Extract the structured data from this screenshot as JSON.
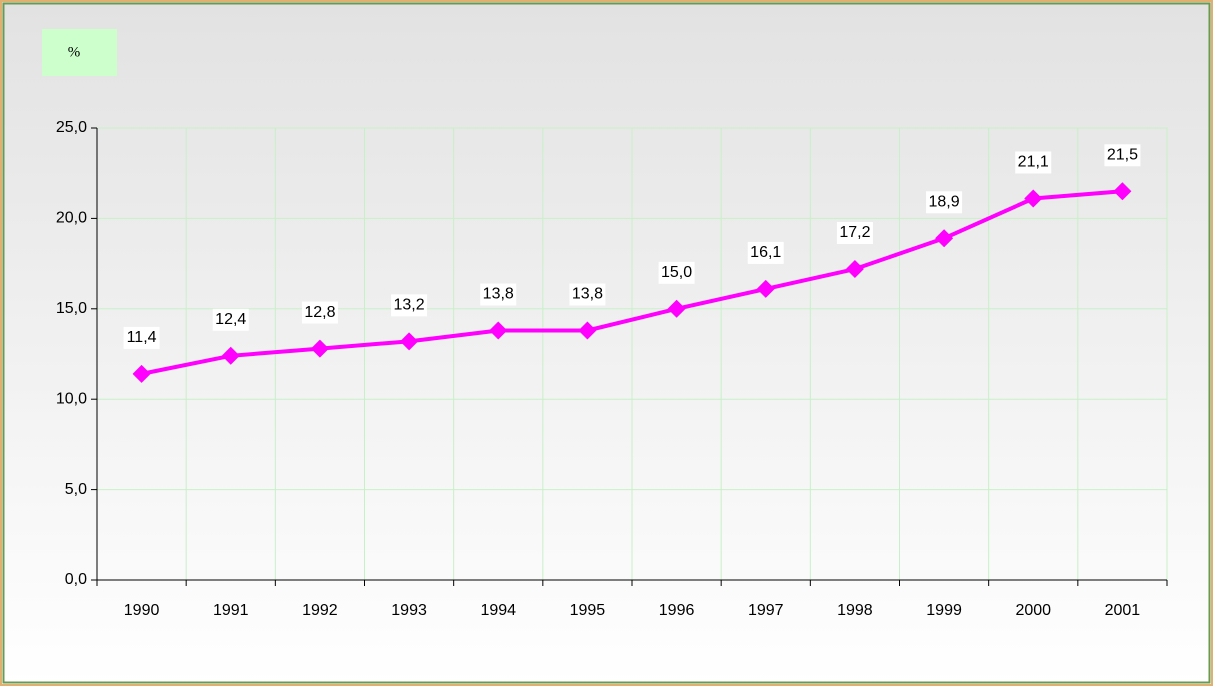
{
  "chart_data": {
    "type": "line",
    "ylabel": "%",
    "categories": [
      "1990",
      "1991",
      "1992",
      "1993",
      "1994",
      "1995",
      "1996",
      "1997",
      "1998",
      "1999",
      "2000",
      "2001"
    ],
    "series": [
      {
        "color": "#ff00ff",
        "values": [
          11.4,
          12.4,
          12.8,
          13.2,
          13.8,
          13.8,
          15.0,
          16.1,
          17.2,
          18.9,
          21.1,
          21.5
        ],
        "value_labels": [
          "11,4",
          "12,4",
          "12,8",
          "13,2",
          "13,8",
          "13,8",
          "15,0",
          "16,1",
          "17,2",
          "18,9",
          "21,1",
          "21,5"
        ]
      }
    ],
    "ylim": [
      0,
      25
    ],
    "yticks": [
      {
        "value": 0,
        "label": "0,0"
      },
      {
        "value": 5,
        "label": "5,0"
      },
      {
        "value": 10,
        "label": "10,0"
      },
      {
        "value": 15,
        "label": "15,0"
      },
      {
        "value": 20,
        "label": "20,0"
      },
      {
        "value": 25,
        "label": "25,0"
      }
    ],
    "grid": true
  }
}
